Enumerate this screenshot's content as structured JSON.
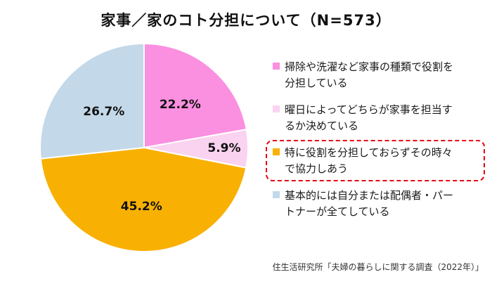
{
  "title": "家事／家のコト分担について（N=573）",
  "source": "住生活研究所「夫婦の暮らしに関する調査（2022年）」",
  "chart_data": {
    "type": "pie",
    "title": "家事／家のコト分担について（N=573）",
    "sample_size_label": "N=573",
    "start_angle_deg": 0,
    "direction": "clockwise",
    "legend_position": "right",
    "slice_border_color": "#ffffff",
    "highlight_border_color": "#e60012",
    "slices": [
      {
        "label": "掃除や洗濯など家事の種類で役割を分担している",
        "value": 22.2,
        "data_label": "22.2%",
        "color": "#fb8fe0",
        "label_radius": 0.54,
        "highlighted": false
      },
      {
        "label": "曜日によってどちらが家事を担当するか決めている",
        "value": 5.9,
        "data_label": "5.9%",
        "color": "#fad3f0",
        "label_radius": 0.77,
        "highlighted": false
      },
      {
        "label": "特に役割を分担しておらずその時々で協力しあう",
        "value": 45.2,
        "data_label": "45.2%",
        "color": "#f8b103",
        "label_radius": 0.57,
        "highlighted": true
      },
      {
        "label": "基本的には自分または配偶者・パートナーが全てしている",
        "value": 26.7,
        "data_label": "26.7%",
        "color": "#c3d8e9",
        "label_radius": 0.52,
        "highlighted": false
      }
    ]
  }
}
